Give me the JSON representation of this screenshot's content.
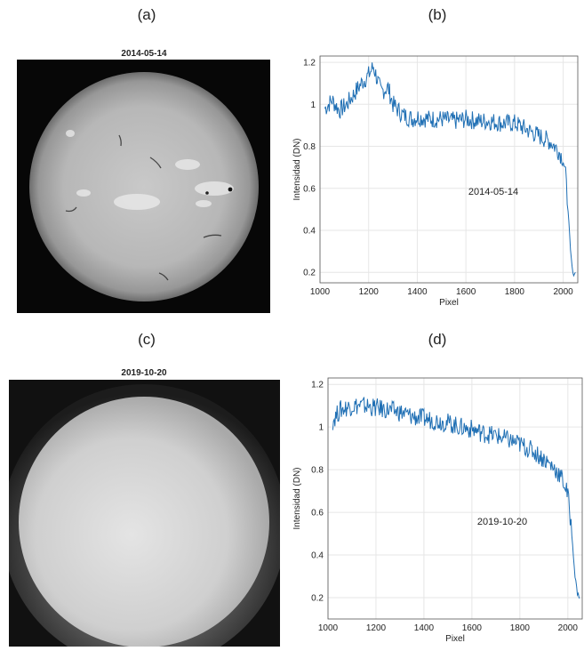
{
  "panels": {
    "a_label": "(a)",
    "b_label": "(b)",
    "c_label": "(c)",
    "d_label": "(d)"
  },
  "images": [
    {
      "title": "2014-05-14",
      "style": "active-disk"
    },
    {
      "title": "2019-10-20",
      "style": "quiet-disk"
    }
  ],
  "colors": {
    "line": "#1f6fb4",
    "grid": "#e6e6e6",
    "axis": "#555555"
  },
  "chart_data": [
    {
      "type": "line",
      "title": "",
      "annotation": "2014-05-14",
      "xlabel": "Pixel",
      "ylabel": "Intensidad (DN)",
      "xlim": [
        1000,
        2060
      ],
      "ylim": [
        0.15,
        1.23
      ],
      "xticks": [
        1000,
        1200,
        1400,
        1600,
        1800,
        2000
      ],
      "yticks": [
        0.2,
        0.4,
        0.6,
        0.8,
        1,
        1.2
      ],
      "grid": true,
      "series": [
        {
          "x": [
            1020,
            1050,
            1080,
            1110,
            1140,
            1170,
            1200,
            1220,
            1250,
            1280,
            1300,
            1340,
            1380,
            1400,
            1450,
            1500,
            1550,
            1600,
            1650,
            1700,
            1750,
            1800,
            1850,
            1900,
            1950,
            1980,
            2000,
            2010,
            2020,
            2030,
            2040,
            2050
          ],
          "y": [
            0.98,
            1.02,
            0.97,
            1.0,
            1.05,
            1.1,
            1.14,
            1.18,
            1.06,
            1.08,
            1.0,
            0.95,
            0.93,
            0.94,
            0.93,
            0.93,
            0.92,
            0.93,
            0.92,
            0.92,
            0.91,
            0.91,
            0.88,
            0.85,
            0.82,
            0.78,
            0.74,
            0.66,
            0.5,
            0.3,
            0.19,
            0.2
          ]
        }
      ]
    },
    {
      "type": "line",
      "title": "",
      "annotation": "2019-10-20",
      "xlabel": "Pixel",
      "ylabel": "Intensidad (DN)",
      "xlim": [
        1000,
        2060
      ],
      "ylim": [
        0.1,
        1.23
      ],
      "xticks": [
        1000,
        1200,
        1400,
        1600,
        1800,
        2000
      ],
      "yticks": [
        0.2,
        0.4,
        0.6,
        0.8,
        1,
        1.2
      ],
      "grid": true,
      "series": [
        {
          "x": [
            1020,
            1050,
            1100,
            1150,
            1200,
            1250,
            1300,
            1350,
            1400,
            1450,
            1500,
            1550,
            1600,
            1650,
            1700,
            1750,
            1800,
            1850,
            1900,
            1950,
            1980,
            2000,
            2010,
            2020,
            2030,
            2040,
            2050
          ],
          "y": [
            1.03,
            1.08,
            1.1,
            1.1,
            1.09,
            1.08,
            1.07,
            1.05,
            1.04,
            1.03,
            1.02,
            1.0,
            0.99,
            0.97,
            0.96,
            0.94,
            0.92,
            0.89,
            0.85,
            0.8,
            0.75,
            0.68,
            0.58,
            0.45,
            0.3,
            0.22,
            0.2
          ]
        }
      ]
    }
  ]
}
